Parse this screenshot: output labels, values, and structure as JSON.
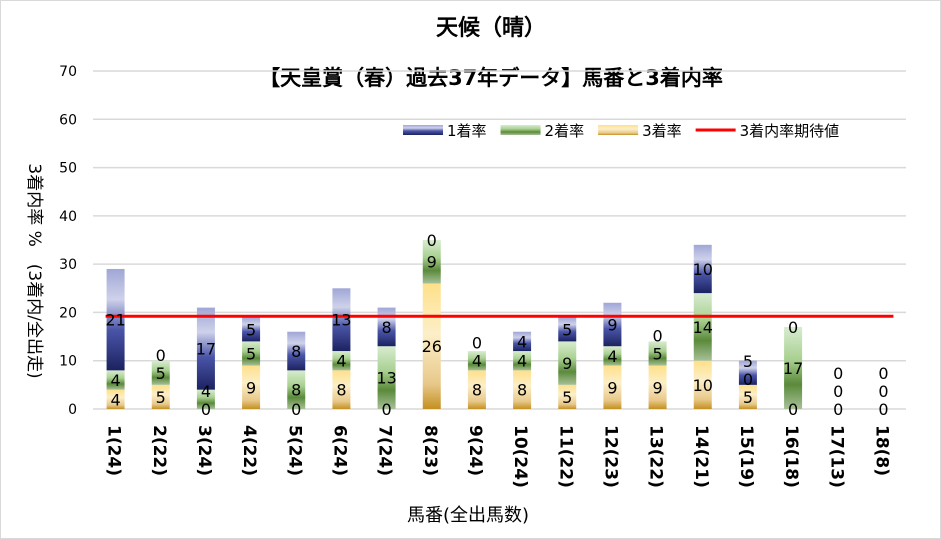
{
  "chart_data": {
    "type": "bar",
    "stacked": true,
    "title": "天候（晴）",
    "subtitle": "【天皇賞（春）過去37年データ】馬番と3着内率",
    "xlabel": "馬番(全出馬数)",
    "ylabel": "3着内率 %　(3着内/全出走)",
    "ylim": [
      0,
      70
    ],
    "yticks": [
      0,
      10,
      20,
      30,
      40,
      50,
      60,
      70
    ],
    "grid": true,
    "legend_position": "top-right",
    "categories": [
      "1(24)",
      "2(22)",
      "3(24)",
      "4(22)",
      "5(24)",
      "6(24)",
      "7(24)",
      "8(23)",
      "9(24)",
      "10(24)",
      "11(22)",
      "12(23)",
      "13(22)",
      "14(21)",
      "15(19)",
      "16(18)",
      "17(13)",
      "18(8)"
    ],
    "series": [
      {
        "name": "1着率",
        "color": "#3f4a9a",
        "values": [
          21,
          0,
          17,
          5,
          8,
          13,
          8,
          0,
          0,
          4,
          5,
          9,
          0,
          10,
          5,
          0,
          0,
          0
        ]
      },
      {
        "name": "2着率",
        "color": "#6a9a4a",
        "values": [
          4,
          5,
          4,
          5,
          8,
          4,
          13,
          9,
          4,
          4,
          9,
          4,
          5,
          14,
          0,
          17,
          0,
          0
        ]
      },
      {
        "name": "3着率",
        "color": "#d9a520",
        "values": [
          4,
          5,
          0,
          9,
          0,
          8,
          0,
          26,
          8,
          8,
          5,
          9,
          9,
          10,
          5,
          0,
          0,
          0
        ]
      }
    ],
    "reference_line": {
      "name": "3着内率期待値",
      "color": "#ff0000",
      "value": 19.2
    }
  }
}
